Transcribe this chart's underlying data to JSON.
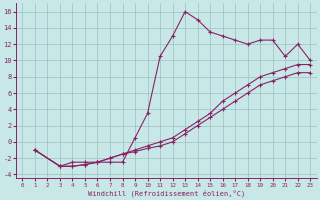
{
  "xlabel": "Windchill (Refroidissement éolien,°C)",
  "bg_color": "#c8e8e8",
  "grid_color": "#9bbfbf",
  "line_color": "#882266",
  "xlim": [
    -0.5,
    23.5
  ],
  "ylim": [
    -4.5,
    17.0
  ],
  "xticks": [
    0,
    1,
    2,
    3,
    4,
    5,
    6,
    7,
    8,
    9,
    10,
    11,
    12,
    13,
    14,
    15,
    16,
    17,
    18,
    19,
    20,
    21,
    22,
    23
  ],
  "yticks": [
    -4,
    -2,
    0,
    2,
    4,
    6,
    8,
    10,
    12,
    14,
    16
  ],
  "line1_x": [
    1,
    3,
    4,
    5,
    6,
    7,
    8,
    9,
    10,
    11,
    12,
    13,
    14,
    15,
    16,
    17,
    18,
    19,
    20,
    21,
    22,
    23
  ],
  "line1_y": [
    -1,
    -3,
    -2.5,
    -2.5,
    -2.5,
    -2.5,
    -2.5,
    0.5,
    3.5,
    10.5,
    13,
    16,
    15,
    13.5,
    13,
    12.5,
    12,
    12.5,
    12.5,
    10.5,
    12,
    10
  ],
  "line2_x": [
    1,
    3,
    4,
    5,
    6,
    7,
    8,
    9,
    10,
    11,
    12,
    13,
    14,
    15,
    16,
    17,
    18,
    19,
    20,
    21,
    22,
    23
  ],
  "line2_y": [
    -1,
    -3,
    -3,
    -2.8,
    -2.5,
    -2,
    -1.5,
    -1,
    -0.5,
    0,
    0.5,
    1.5,
    2.5,
    3.5,
    5,
    6,
    7,
    8,
    8.5,
    9,
    9.5,
    9.5
  ],
  "line3_x": [
    1,
    3,
    4,
    5,
    6,
    7,
    8,
    9,
    10,
    11,
    12,
    13,
    14,
    15,
    16,
    17,
    18,
    19,
    20,
    21,
    22,
    23
  ],
  "line3_y": [
    -1,
    -3,
    -3,
    -2.8,
    -2.5,
    -2,
    -1.5,
    -1.2,
    -0.8,
    -0.5,
    0,
    1,
    2,
    3,
    4,
    5,
    6,
    7,
    7.5,
    8,
    8.5,
    8.5
  ]
}
